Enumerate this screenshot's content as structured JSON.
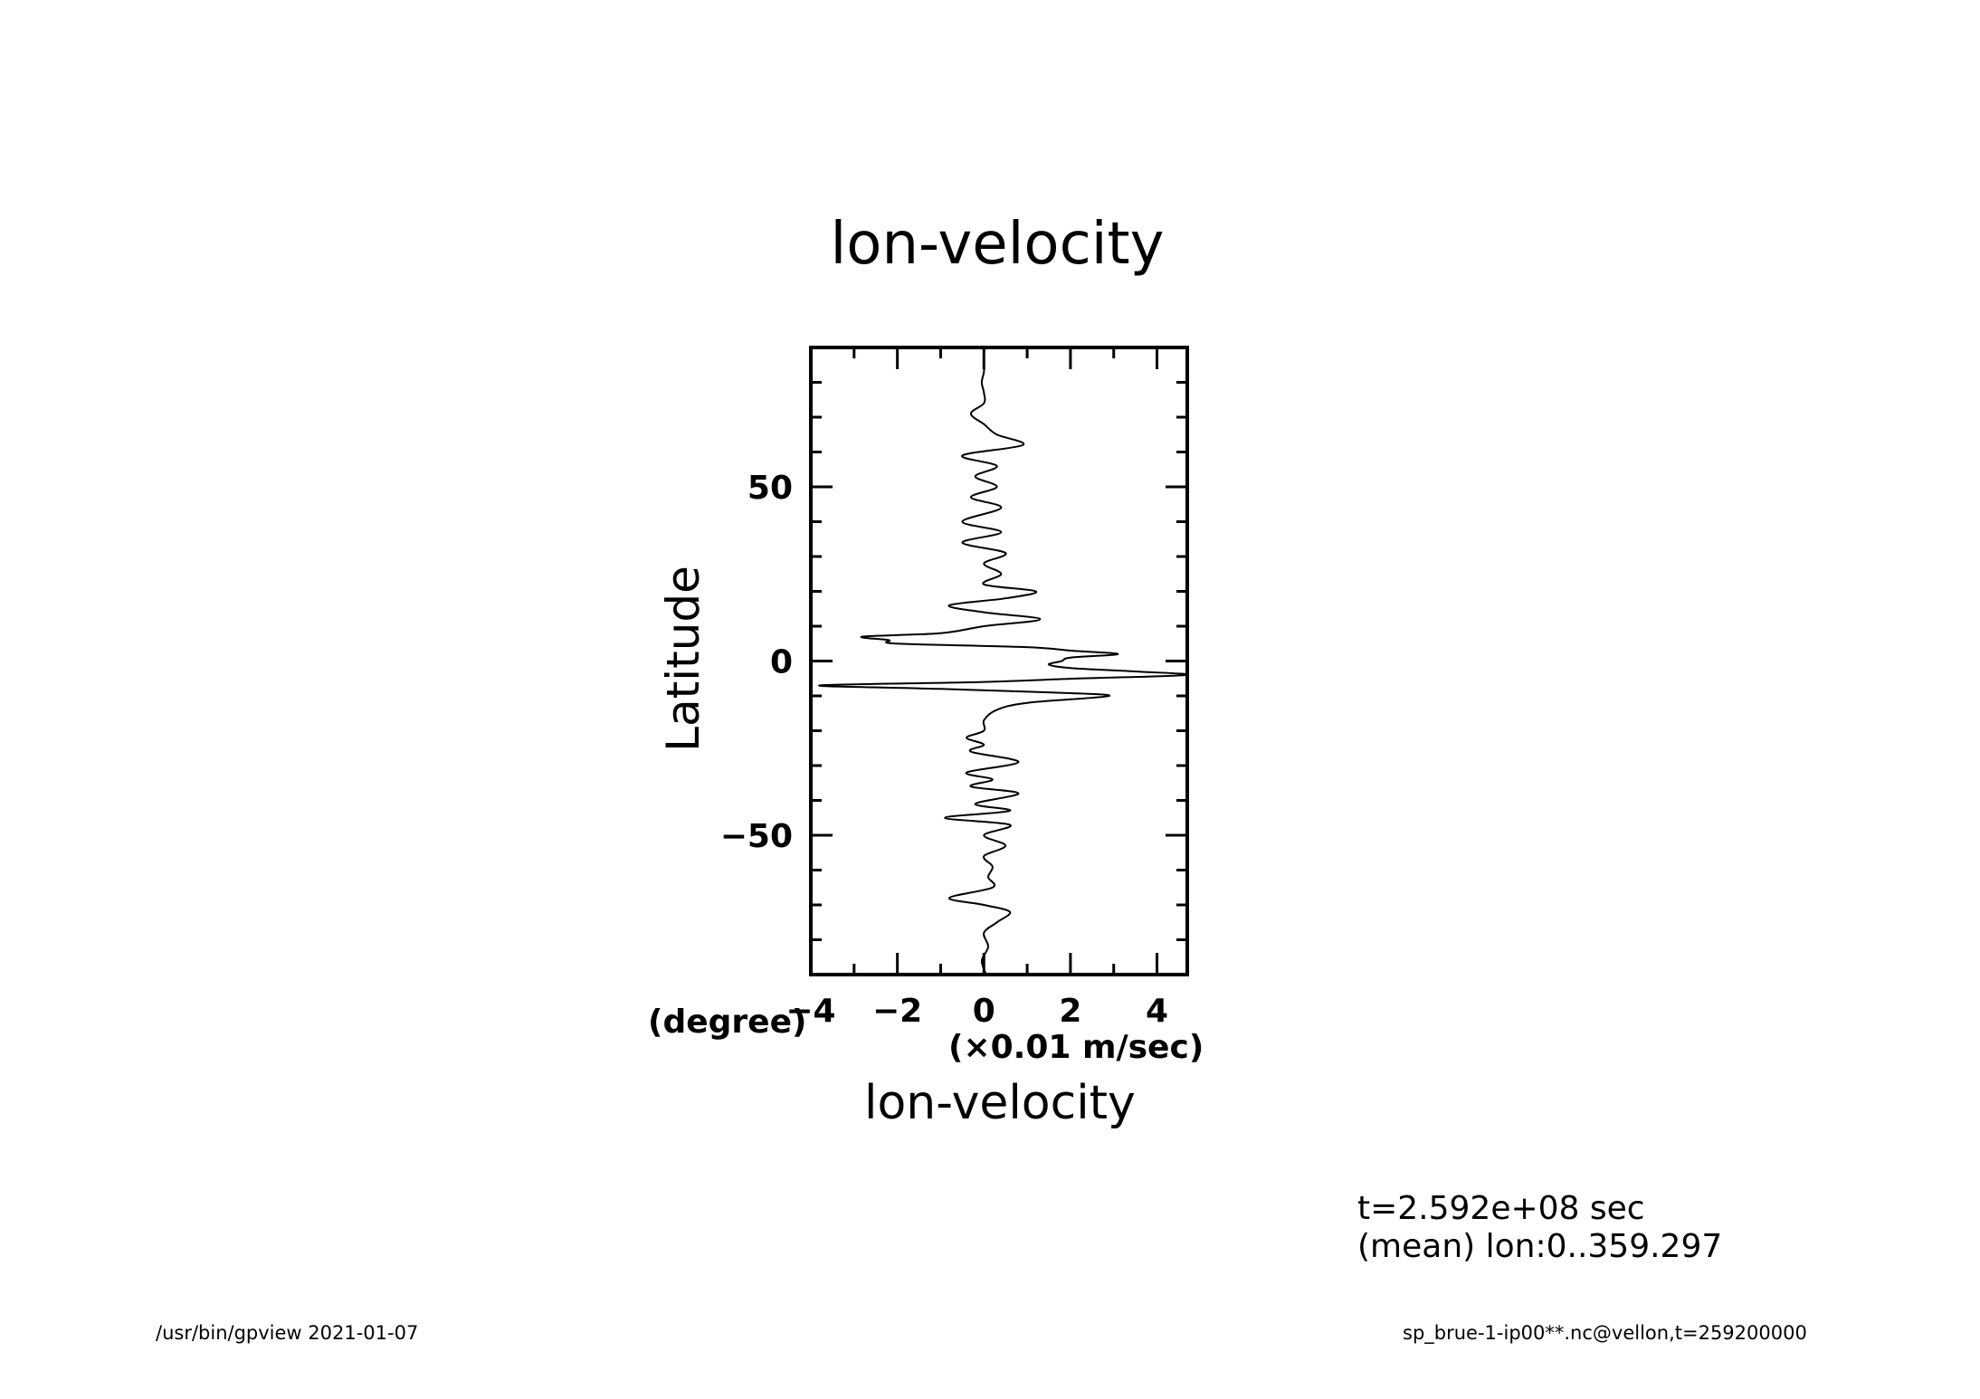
{
  "chart_data": {
    "type": "line",
    "title": "lon-velocity",
    "xlabel": "lon-velocity",
    "xunits": "(×0.01 m/sec)",
    "ylabel": "Latitude",
    "yunits": "(degree)",
    "xlim": [
      -4.0,
      4.7
    ],
    "ylim": [
      -90,
      90
    ],
    "x_ticks": [
      -4,
      -2,
      0,
      2,
      4
    ],
    "x_tick_labels": [
      "−4",
      "−2",
      "0",
      "2",
      "4"
    ],
    "y_ticks": [
      -50,
      0,
      50
    ],
    "y_tick_labels": [
      "−50",
      "0",
      "50"
    ],
    "grid": false,
    "series": [
      {
        "lat": [
          -90,
          -86,
          -82,
          -78,
          -75,
          -72,
          -70,
          -68,
          -65,
          -62,
          -59,
          -56,
          -53,
          -50,
          -47,
          -45,
          -43,
          -41,
          -38,
          -36,
          -34,
          -32,
          -29,
          -26,
          -24,
          -22,
          -20,
          -17,
          -14,
          -12,
          -10,
          -9,
          -8,
          -7,
          -6,
          -5,
          -4,
          -3,
          -2,
          -1,
          0,
          1,
          2,
          3,
          4,
          5,
          6,
          7,
          8,
          10,
          12,
          14,
          16,
          18,
          20,
          22,
          25,
          28,
          31,
          34,
          37,
          40,
          44,
          47,
          50,
          53,
          56,
          59,
          62,
          65,
          68,
          71,
          74,
          77,
          80,
          83,
          86,
          90
        ],
        "values": [
          0.05,
          -0.05,
          0.1,
          0.0,
          0.3,
          0.6,
          0.0,
          -0.8,
          0.2,
          0.1,
          0.2,
          0.0,
          0.5,
          0.0,
          0.6,
          -0.9,
          0.6,
          -0.2,
          0.8,
          -0.3,
          0.2,
          -0.4,
          0.8,
          -0.3,
          0.0,
          -0.4,
          0.0,
          0.0,
          0.3,
          1.0,
          2.9,
          1.5,
          -1.0,
          -3.8,
          0.0,
          2.2,
          4.7,
          3.5,
          2.0,
          1.5,
          1.8,
          2.0,
          3.1,
          2.0,
          1.0,
          -2.0,
          -2.2,
          -2.8,
          -1.0,
          0.0,
          1.3,
          0.0,
          -0.8,
          0.5,
          1.2,
          0.0,
          0.4,
          0.0,
          0.5,
          -0.5,
          0.4,
          -0.5,
          0.4,
          -0.3,
          0.3,
          -0.2,
          0.3,
          -0.5,
          0.9,
          0.3,
          0.0,
          -0.3,
          0.0,
          0.0,
          -0.05,
          0.0,
          0.0,
          0.0
        ]
      }
    ]
  },
  "info": {
    "time": "t=2.592e+08 sec",
    "mean": "(mean) lon:0..359.297"
  },
  "footer": {
    "left": "/usr/bin/gpview   2021-01-07",
    "right": "sp_brue-1-ip00**.nc@vellon,t=259200000"
  }
}
